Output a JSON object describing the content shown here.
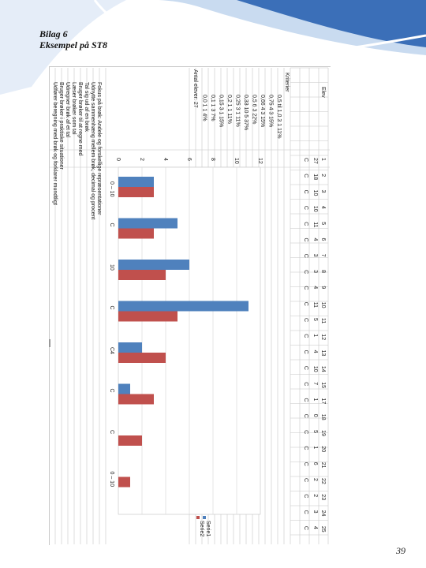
{
  "document": {
    "title_line1": "Bilag 6",
    "title_line2": "Eksempel på ST8",
    "page_number": "39"
  },
  "colors": {
    "serie1": "#4f81bd",
    "serie2": "#c0504d",
    "banner_dark": "#2e5fa8",
    "banner_light": "#7ea5d8"
  },
  "table": {
    "header_label": "Elev",
    "criteria_label": "Kriterier",
    "student_count_label": "Antal elever: 27",
    "rows": [
      "0,5 til 1,0    3  1  11%",
      "0,75    4  3  15%",
      "0,66    4  3  15%",
      "0,5    6  3  22%",
      "0,33    10  5  37%",
      "0,25    3  1  11%",
      "0,2    1  1  11%",
      "0,15    3  1  15%",
      "0,1    1  3  7%",
      "0,0    1  1  4%"
    ],
    "goal_list": [
      "Fokus på brøk: Andele og forskellige repræsentationer",
      "Udnytte sammenhæng mellem brøk, decimal og procent",
      "Tal sig ud af en brøk",
      "Bruger brøker til at regne med",
      "Læser brøker som tal",
      "Udregner brøk af et tal",
      "Bruger brøker i praktiske situationer",
      "Udfører beregning med brøk og forklarer mundtligt"
    ],
    "student_numbers": [
      "1",
      "2",
      "3",
      "4",
      "5",
      "6",
      "7",
      "8",
      "9",
      "10",
      "11",
      "12",
      "13",
      "14",
      "15",
      "17",
      "18",
      "19",
      "20",
      "21",
      "22",
      "23",
      "24",
      "25"
    ],
    "student_scores": [
      "27",
      "18",
      "10",
      "10",
      "11",
      "4",
      "3",
      "3",
      "4",
      "11",
      "5",
      "1",
      "4",
      "10",
      "7",
      "1",
      "0",
      "5",
      "1",
      "6",
      "2",
      "2",
      "3",
      "4"
    ],
    "score_row_b": [
      "C",
      "C",
      "C",
      "C",
      "C",
      "C",
      "C",
      "C",
      "C",
      "C",
      "C",
      "C",
      "C",
      "C",
      "C",
      "C",
      "C",
      "C",
      "C",
      "C",
      "C",
      "C",
      "C",
      "C"
    ]
  },
  "chart_data": {
    "type": "bar",
    "orientation": "horizontal",
    "categories": [
      "0 – 10",
      "C",
      "10",
      "C",
      "C4",
      "C",
      "C",
      "0 – 10"
    ],
    "series": [
      {
        "name": "Serie1",
        "values": [
          3,
          5,
          6,
          11,
          2,
          1,
          0,
          0
        ]
      },
      {
        "name": "Serie2",
        "values": [
          3,
          3,
          4,
          5,
          4,
          3,
          2,
          1
        ]
      }
    ],
    "ylim": [
      0,
      12
    ],
    "ticks": [
      "0",
      "2",
      "4",
      "6",
      "8",
      "10",
      "12"
    ],
    "grid": true,
    "legend": "bottom-right"
  }
}
